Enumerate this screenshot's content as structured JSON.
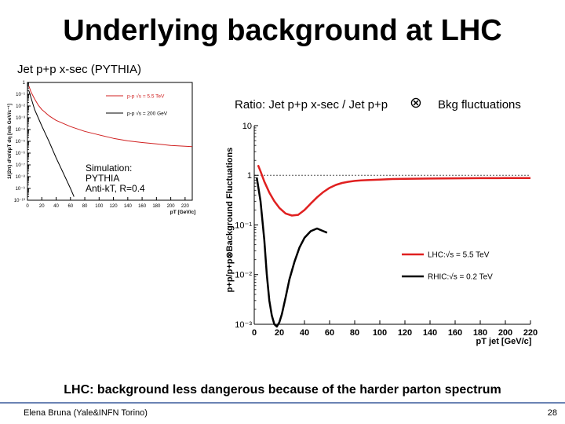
{
  "slide": {
    "title": "Underlying background at LHC",
    "subtitle": "Jet p+p x-sec (PYTHIA)",
    "ratio_label": "Ratio: Jet p+p x-sec / Jet p+p",
    "otimes_symbol": "⊗",
    "bkg_label": "Bkg fluctuations",
    "simulation_label": "Simulation:",
    "simulation_generator": "PYTHIA",
    "simulation_algo": "Anti-kT, R=0.4",
    "footer_message": "LHC: background less dangerous because of the harder parton spectrum",
    "footer_author": "Elena Bruna (Yale&INFN Torino)",
    "page_number": "28",
    "accent_color": "#6b83b4"
  },
  "chart_data": [
    {
      "type": "line",
      "title": "Jet p+p x-sec (PYTHIA)",
      "xlabel": "pT [GeV/c]",
      "ylabel": "1/(2π) d²σ/dpT dη [mb GeV/c⁻¹]",
      "xlim": [
        0,
        230
      ],
      "ylim_log10": [
        -10,
        0
      ],
      "x_ticks": [
        "0",
        "20",
        "40",
        "60",
        "80",
        "100",
        "120",
        "140",
        "160",
        "180",
        "200",
        "220"
      ],
      "y_ticks": [
        "1",
        "10⁻¹",
        "10⁻²",
        "10⁻³",
        "10⁻⁴",
        "10⁻⁵",
        "10⁻⁶",
        "10⁻⁷",
        "10⁻⁸",
        "10⁻⁹",
        "10⁻¹⁰"
      ],
      "legend_position": "top-right",
      "series": [
        {
          "name": "p-p √s = 5.5 TeV",
          "color": "#d02020",
          "x": [
            2,
            5,
            10,
            15,
            20,
            30,
            40,
            60,
            80,
            100,
            120,
            140,
            160,
            180,
            200,
            220,
            230
          ],
          "y": [
            0.5,
            0.15,
            0.04,
            0.012,
            0.005,
            0.0015,
            0.0006,
            0.00018,
            7e-05,
            3.5e-05,
            1.8e-05,
            1.1e-05,
            8e-06,
            6e-06,
            4.5e-06,
            3.8e-06,
            3.5e-06
          ]
        },
        {
          "name": "p-p √s = 200 GeV",
          "color": "#000000",
          "x": [
            2,
            10,
            20,
            30,
            40,
            50,
            60,
            65
          ],
          "y": [
            0.2,
            0.005,
            0.0002,
            1e-05,
            4e-07,
            2e-08,
            1e-09,
            2e-10
          ]
        }
      ]
    },
    {
      "type": "line",
      "title": "Ratio: Jet p+p x-sec / Jet p+p ⊗ Bkg fluctuations",
      "xlabel": "pT jet [GeV/c]",
      "ylabel": "p+p/p+p⊗Background Fluctuations",
      "xlim": [
        0,
        220
      ],
      "ylim_log10": [
        -3,
        1
      ],
      "x_ticks": [
        "0",
        "20",
        "40",
        "60",
        "80",
        "100",
        "120",
        "140",
        "160",
        "180",
        "200",
        "220"
      ],
      "y_ticks": [
        "10",
        "1",
        "10⁻¹",
        "10⁻²",
        "10⁻³"
      ],
      "reference_line_y": 1,
      "legend_position": "bottom-right",
      "series": [
        {
          "name": "LHC:√s = 5.5 TeV",
          "color": "#e02020",
          "x": [
            3,
            5,
            8,
            12,
            16,
            20,
            25,
            30,
            35,
            40,
            45,
            50,
            55,
            60,
            65,
            70,
            75,
            80,
            85,
            90,
            100,
            110,
            120,
            140,
            160,
            180,
            200,
            220
          ],
          "y": [
            1.6,
            1.2,
            0.75,
            0.45,
            0.3,
            0.22,
            0.17,
            0.155,
            0.16,
            0.2,
            0.27,
            0.36,
            0.46,
            0.56,
            0.64,
            0.7,
            0.74,
            0.77,
            0.79,
            0.8,
            0.82,
            0.84,
            0.85,
            0.86,
            0.87,
            0.875,
            0.88,
            0.88
          ]
        },
        {
          "name": "RHIC:√s = 0.2 TeV",
          "color": "#000000",
          "x": [
            2,
            5,
            8,
            10,
            12,
            14,
            16,
            18,
            20,
            22,
            25,
            28,
            32,
            36,
            40,
            45,
            50,
            55,
            58
          ],
          "y": [
            0.9,
            0.3,
            0.05,
            0.01,
            0.003,
            0.0015,
            0.001,
            0.0009,
            0.0011,
            0.0016,
            0.0035,
            0.008,
            0.018,
            0.035,
            0.055,
            0.075,
            0.085,
            0.075,
            0.07
          ]
        }
      ]
    }
  ]
}
